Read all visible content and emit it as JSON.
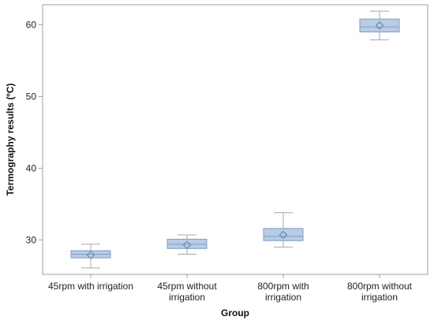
{
  "chart_data": {
    "type": "box",
    "title": "",
    "xlabel": "Group",
    "ylabel": "Termography results (ºC)",
    "categories": [
      [
        "45rpm with irrigation"
      ],
      [
        "45rpm without",
        "irrigation"
      ],
      [
        "800rpm with",
        "irrigation"
      ],
      [
        "800rpm without",
        "irrigation"
      ]
    ],
    "yticks": [
      30,
      40,
      50,
      60
    ],
    "ylim": [
      25.2,
      62.8
    ],
    "grid": false,
    "boxes": [
      {
        "min": 26.1,
        "q1": 27.5,
        "median": 28.0,
        "q3": 28.5,
        "max": 29.4,
        "mean": 27.9
      },
      {
        "min": 28.0,
        "q1": 28.8,
        "median": 29.4,
        "q3": 30.1,
        "max": 30.7,
        "mean": 29.3
      },
      {
        "min": 29.0,
        "q1": 29.9,
        "median": 30.5,
        "q3": 31.6,
        "max": 33.8,
        "mean": 30.7
      },
      {
        "min": 57.9,
        "q1": 59.0,
        "median": 59.7,
        "q3": 60.8,
        "max": 61.9,
        "mean": 59.9
      }
    ],
    "colors": {
      "box_fill": "#b8cce4",
      "box_stroke": "#7f9fc4",
      "whisker": "#a8a8a8",
      "axis": "#a0a0a0",
      "mean_marker": "#5a7fae"
    }
  }
}
